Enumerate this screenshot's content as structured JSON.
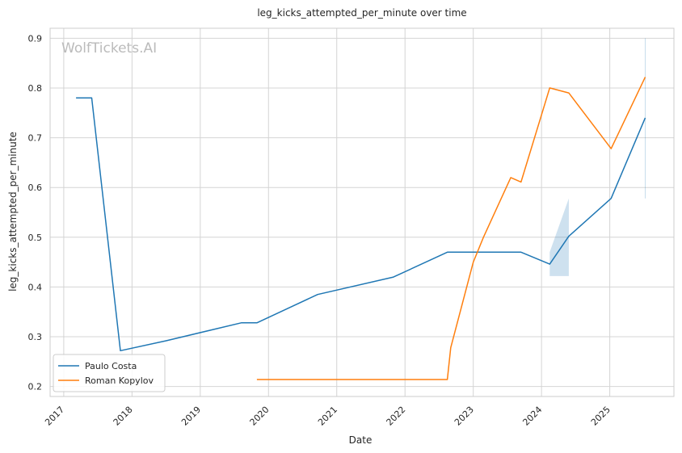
{
  "watermark": "WolfTickets.AI",
  "chart_data": {
    "type": "line",
    "title": "leg_kicks_attempted_per_minute over time",
    "xlabel": "Date",
    "ylabel": "leg_kicks_attempted_per_minute",
    "x_ticks": [
      "2017",
      "2018",
      "2019",
      "2020",
      "2021",
      "2022",
      "2023",
      "2024",
      "2025"
    ],
    "y_ticks": [
      "0.2",
      "0.3",
      "0.4",
      "0.5",
      "0.6",
      "0.7",
      "0.8",
      "0.9"
    ],
    "xlim": [
      2016.8,
      2025.94
    ],
    "ylim": [
      0.18,
      0.92
    ],
    "grid": true,
    "legend_position": "lower-left",
    "series": [
      {
        "name": "Paulo Costa",
        "color": "#1f77b4",
        "points": [
          [
            2017.18,
            0.78
          ],
          [
            2017.41,
            0.78
          ],
          [
            2017.83,
            0.272
          ],
          [
            2018.5,
            0.292
          ],
          [
            2019.6,
            0.328
          ],
          [
            2019.83,
            0.328
          ],
          [
            2020.72,
            0.385
          ],
          [
            2021.83,
            0.42
          ],
          [
            2022.62,
            0.47
          ],
          [
            2023.05,
            0.47
          ],
          [
            2023.7,
            0.47
          ],
          [
            2024.12,
            0.446
          ],
          [
            2024.4,
            0.502
          ],
          [
            2025.02,
            0.578
          ],
          [
            2025.52,
            0.74
          ]
        ],
        "bands": [
          {
            "x": [
              2024.12,
              2024.4
            ],
            "lower": [
              0.422,
              0.422
            ],
            "upper": [
              0.47,
              0.578
            ]
          },
          {
            "x": [
              2025.52,
              2025.52
            ],
            "lower": [
              0.578,
              0.578
            ],
            "upper": [
              0.9,
              0.9
            ]
          }
        ]
      },
      {
        "name": "Roman Kopylov",
        "color": "#ff7f0e",
        "points": [
          [
            2019.83,
            0.214
          ],
          [
            2022.62,
            0.214
          ],
          [
            2022.67,
            0.278
          ],
          [
            2023.0,
            0.45
          ],
          [
            2023.15,
            0.5
          ],
          [
            2023.55,
            0.62
          ],
          [
            2023.7,
            0.611
          ],
          [
            2024.12,
            0.8
          ],
          [
            2024.4,
            0.79
          ],
          [
            2025.02,
            0.678
          ],
          [
            2025.52,
            0.822
          ]
        ]
      }
    ]
  }
}
